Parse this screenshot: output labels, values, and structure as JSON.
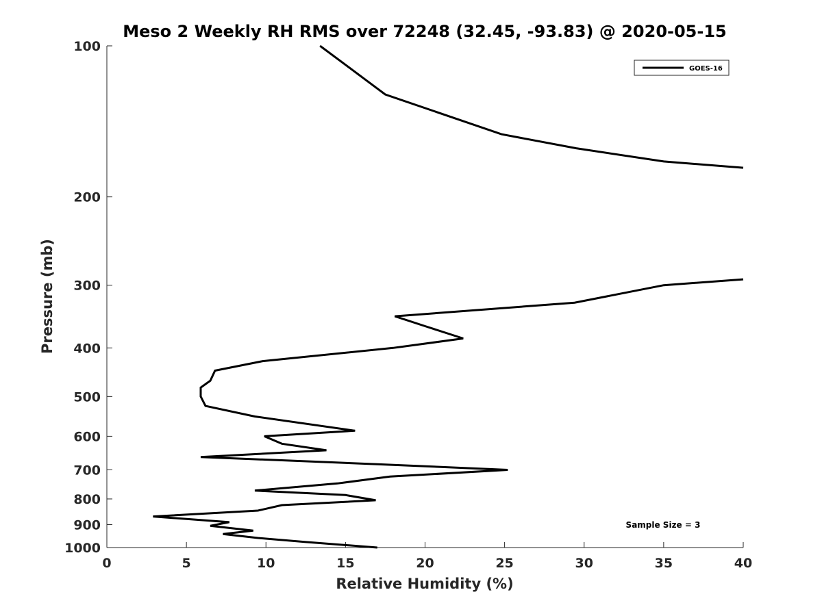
{
  "chart_data": {
    "type": "line",
    "title": "Meso 2 Weekly RH RMS over 72248 (32.45, -93.83) @ 2020-05-15",
    "xlabel": "Relative Humidity (%)",
    "ylabel": "Pressure (mb)",
    "xlim": [
      0,
      40
    ],
    "ylim": [
      100,
      1000
    ],
    "y_scale": "log",
    "y_reversed": true,
    "x_ticks": [
      0,
      5,
      10,
      15,
      20,
      25,
      30,
      35,
      40
    ],
    "y_ticks": [
      100,
      200,
      300,
      400,
      500,
      600,
      700,
      800,
      900,
      1000
    ],
    "grid": false,
    "legend_position": "top-right",
    "annotation": "Sample Size = 3",
    "series": [
      {
        "name": "GOES-16",
        "color": "#000000",
        "segments": [
          [
            [
              13.4,
              100
            ],
            [
              17.5,
              125
            ],
            [
              24.8,
              150
            ],
            [
              29.5,
              160
            ],
            [
              35,
              170
            ],
            [
              40,
              175
            ]
          ],
          [
            [
              40,
              292
            ],
            [
              35,
              300
            ],
            [
              29.4,
              325
            ],
            [
              18.1,
              346
            ],
            [
              20,
              362
            ],
            [
              22.4,
              383
            ],
            [
              18,
              400
            ],
            [
              9.8,
              425
            ],
            [
              6.8,
              444
            ],
            [
              6.5,
              465
            ],
            [
              5.9,
              480
            ],
            [
              5.9,
              500
            ],
            [
              6.2,
              522
            ],
            [
              9.3,
              548
            ],
            [
              15.6,
              585
            ],
            [
              9.9,
              600
            ],
            [
              11.0,
              621
            ],
            [
              13.8,
              640
            ],
            [
              5.9,
              660
            ],
            [
              17,
              682
            ],
            [
              25.2,
              700
            ],
            [
              17.8,
              722
            ],
            [
              14.5,
              745
            ],
            [
              9.3,
              770
            ],
            [
              15,
              786
            ],
            [
              16.9,
              805
            ],
            [
              11,
              823
            ],
            [
              9.5,
              844
            ],
            [
              2.9,
              867
            ],
            [
              7.7,
              890
            ],
            [
              6.5,
              905
            ],
            [
              9.2,
              925
            ],
            [
              7.3,
              940
            ],
            [
              9.5,
              957
            ],
            [
              12.5,
              975
            ],
            [
              17,
              1000
            ]
          ]
        ]
      }
    ]
  }
}
